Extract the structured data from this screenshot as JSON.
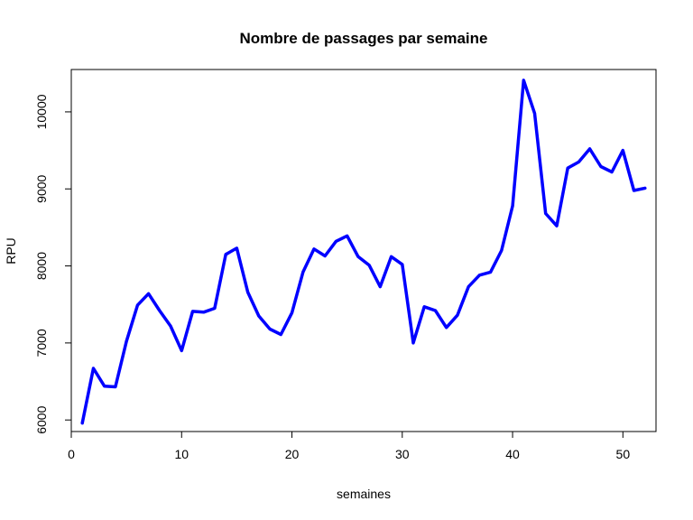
{
  "chart_data": {
    "type": "line",
    "title": "Nombre de passages par semaine",
    "xlabel": "semaines",
    "ylabel": "RPU",
    "xlim": [
      0,
      53
    ],
    "ylim": [
      5850,
      10550
    ],
    "x_ticks": [
      0,
      10,
      20,
      30,
      40,
      50
    ],
    "y_ticks": [
      6000,
      7000,
      8000,
      9000,
      10000
    ],
    "grid": false,
    "line_color": "#0000ff",
    "series": [
      {
        "x": [
          1,
          2,
          3,
          4,
          5,
          6,
          7,
          8,
          9,
          10,
          11,
          12,
          13,
          14,
          15,
          16,
          17,
          18,
          19,
          20,
          21,
          22,
          23,
          24,
          25,
          26,
          27,
          28,
          29,
          30,
          31,
          32,
          33,
          34,
          35,
          36,
          37,
          38,
          39,
          40,
          41,
          42,
          43,
          44,
          45,
          46,
          47,
          48,
          49,
          50,
          51,
          52
        ],
        "values": [
          5960,
          6670,
          6440,
          6430,
          7020,
          7490,
          7640,
          7420,
          7220,
          6900,
          7410,
          7400,
          7450,
          8150,
          8230,
          7660,
          7350,
          7180,
          7110,
          7390,
          7920,
          8220,
          8130,
          8320,
          8390,
          8120,
          8010,
          7730,
          8120,
          8020,
          7000,
          7470,
          7420,
          7200,
          7360,
          7730,
          7880,
          7920,
          8200,
          8780,
          10410,
          9980,
          8680,
          8520,
          9270,
          9350,
          9520,
          9290,
          9220,
          9500,
          8980,
          9010
        ]
      }
    ]
  }
}
